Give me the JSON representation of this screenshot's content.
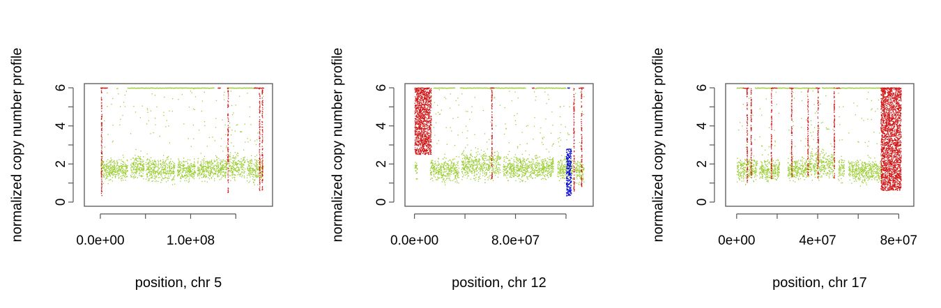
{
  "colors": {
    "normal": "#9acd32",
    "amp": "#d11414",
    "focal": "#0000d8"
  },
  "chart_data": [
    {
      "type": "scatter",
      "xlabel": "position, chr 5",
      "ylabel": "normalized copy number profile",
      "xlim": [
        -10000000,
        183000000
      ],
      "ylim": [
        0,
        6
      ],
      "yticks": [
        0,
        2,
        4,
        6
      ],
      "yminor": [
        1,
        3,
        5
      ],
      "xticks": [
        0,
        100000000
      ],
      "xtick_labels": [
        "0.0e+00",
        "1.0e+08"
      ],
      "xminor": [
        50000000,
        150000000
      ],
      "grid": false,
      "series": [
        {
          "color_key": "normal",
          "segments": [
            [
              0,
              3000000,
              1.2,
              2.5
            ],
            [
              3000000,
              30000000,
              1.0,
              2.4
            ],
            [
              33000000,
              48000000,
              1.0,
              2.6
            ],
            [
              50000000,
              82000000,
              0.9,
              2.5
            ],
            [
              85000000,
              105000000,
              1.0,
              2.4
            ],
            [
              107000000,
              140000000,
              1.0,
              2.5
            ],
            [
              142000000,
              160000000,
              1.0,
              2.7
            ],
            [
              162000000,
              180000000,
              0.9,
              2.5
            ]
          ],
          "cap_segments": [
            [
              30000000,
              126000000
            ],
            [
              140000000,
              172000000
            ]
          ]
        },
        {
          "color_key": "amp",
          "vlines": [
            [
              1000000,
              0.3,
              6
            ],
            [
              141000000,
              0.5,
              6
            ],
            [
              176000000,
              0.5,
              6
            ],
            [
              179000000,
              0.6,
              6
            ]
          ],
          "cap_segments": [
            [
              0,
              8000000
            ],
            [
              130000000,
              133000000
            ],
            [
              170000000,
              181000000
            ]
          ]
        }
      ]
    },
    {
      "type": "scatter",
      "xlabel": "position, chr 12",
      "ylabel": "normalized copy number profile",
      "xlim": [
        -2000000,
        136000000
      ],
      "ylim": [
        0,
        6
      ],
      "yticks": [
        0,
        2,
        4,
        6
      ],
      "yminor": [
        1,
        3,
        5
      ],
      "xticks": [
        0,
        80000000
      ],
      "xtick_labels": [
        "0.0e+00",
        "8.0e+07"
      ],
      "xminor": [
        40000000,
        120000000
      ],
      "grid": false,
      "series": [
        {
          "color_key": "normal",
          "segments": [
            [
              0,
              2000000,
              1.0,
              2.4
            ],
            [
              12000000,
              35000000,
              0.9,
              2.5
            ],
            [
              37000000,
              68000000,
              1.0,
              2.9
            ],
            [
              70000000,
              110000000,
              1.0,
              2.6
            ],
            [
              113000000,
              125000000,
              1.0,
              2.5
            ],
            [
              127000000,
              134000000,
              0.8,
              2.4
            ]
          ],
          "cap_segments": [
            [
              0,
              1000000
            ],
            [
              15000000,
              32000000
            ],
            [
              36000000,
              88000000
            ],
            [
              96000000,
              120000000
            ]
          ]
        },
        {
          "color_key": "amp",
          "blocks": [
            [
              0,
              13000000,
              2.5,
              6
            ]
          ],
          "vlines": [
            [
              61000000,
              1.2,
              6
            ],
            [
              126000000,
              0.5,
              6
            ],
            [
              132000000,
              0.8,
              6
            ]
          ],
          "cap_segments": [
            [
              0,
              12000000
            ],
            [
              60000000,
              63000000
            ],
            [
              93000000,
              95000000
            ],
            [
              130000000,
              134000000
            ]
          ]
        },
        {
          "color_key": "focal",
          "blocks": [
            [
              120000000,
              124000000,
              0.3,
              2.8
            ]
          ],
          "cap_segments": [
            [
              121000000,
              123000000
            ]
          ]
        }
      ]
    },
    {
      "type": "scatter",
      "xlabel": "position, chr 17",
      "ylabel": "normalized copy number profile",
      "xlim": [
        -2000000,
        84000000
      ],
      "ylim": [
        0,
        6
      ],
      "yticks": [
        0,
        2,
        4,
        6
      ],
      "yminor": [
        1,
        3,
        5
      ],
      "xticks": [
        0,
        40000000,
        80000000
      ],
      "xtick_labels": [
        "0e+00",
        "4e+07",
        "8e+07"
      ],
      "xminor": [
        20000000,
        60000000
      ],
      "grid": false,
      "series": [
        {
          "color_key": "normal",
          "segments": [
            [
              0,
              7000000,
              0.9,
              2.6
            ],
            [
              7000000,
              10000000,
              1.0,
              2.5
            ],
            [
              11000000,
              21000000,
              1.0,
              2.4
            ],
            [
              25000000,
              36000000,
              1.0,
              2.5
            ],
            [
              36000000,
              48000000,
              1.0,
              2.9
            ],
            [
              50000000,
              53000000,
              1.0,
              2.5
            ],
            [
              55000000,
              72000000,
              0.9,
              2.4
            ]
          ],
          "cap_segments": [
            [
              0,
              3000000
            ],
            [
              9000000,
              18000000
            ],
            [
              20000000,
              27000000
            ],
            [
              28000000,
              40000000
            ],
            [
              42000000,
              72000000
            ]
          ]
        },
        {
          "color_key": "amp",
          "blocks": [
            [
              71000000,
              81000000,
              0.6,
              6
            ]
          ],
          "vlines": [
            [
              5000000,
              1.0,
              6
            ],
            [
              7000000,
              1.2,
              6
            ],
            [
              17000000,
              1.2,
              6
            ],
            [
              27000000,
              1.3,
              6
            ],
            [
              35000000,
              1.3,
              6
            ],
            [
              40000000,
              1.2,
              6
            ],
            [
              48000000,
              1.2,
              6
            ]
          ],
          "cap_segments": [
            [
              3000000,
              6000000
            ],
            [
              17000000,
              20000000
            ],
            [
              26000000,
              28000000
            ],
            [
              39000000,
              41000000
            ],
            [
              49000000,
              51000000
            ],
            [
              71000000,
              81000000
            ]
          ]
        }
      ]
    }
  ]
}
